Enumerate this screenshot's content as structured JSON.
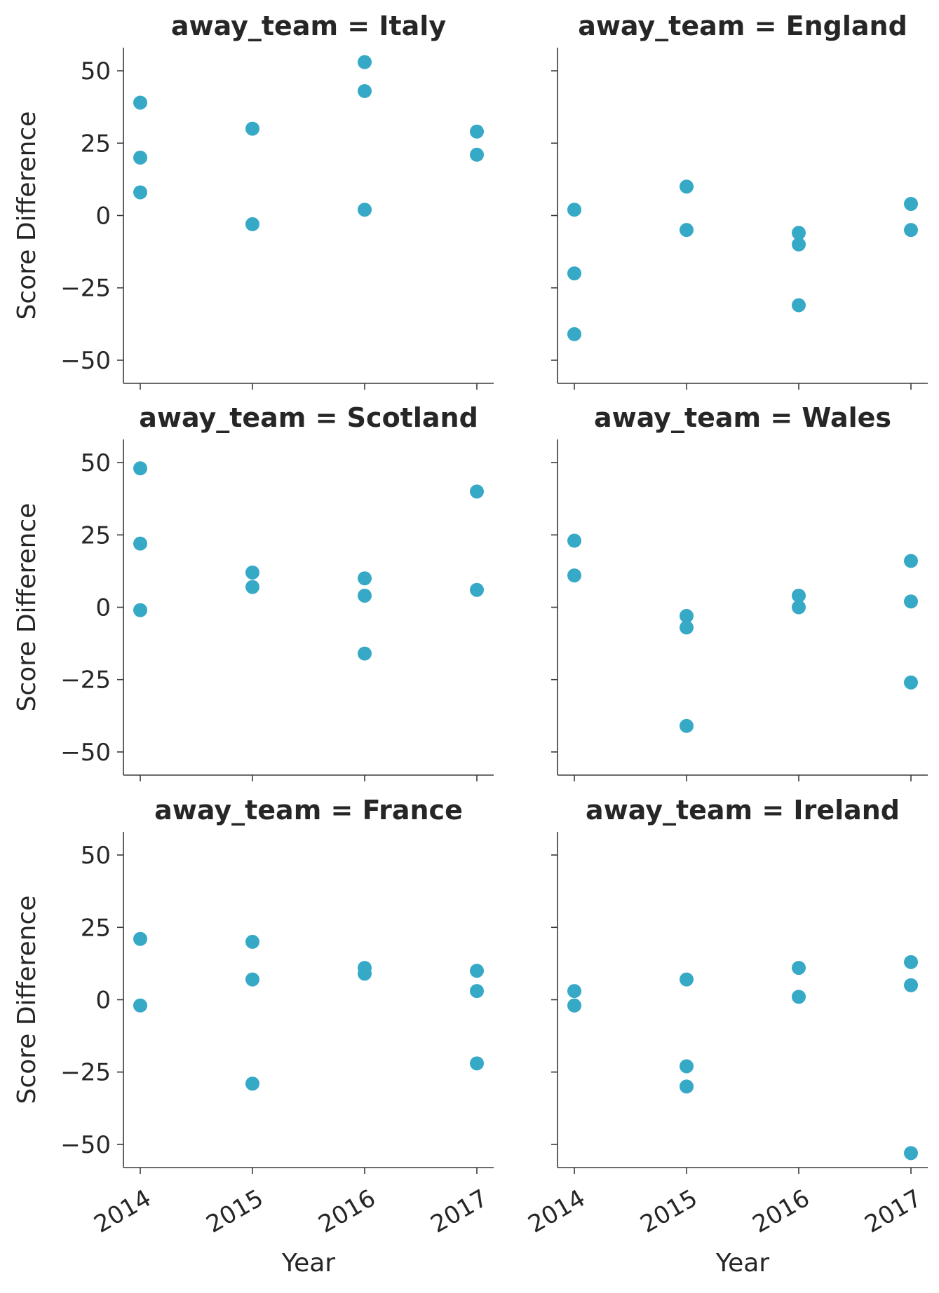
{
  "chart_data": {
    "type": "scatter",
    "facet_variable": "away_team",
    "xlabel": "Year",
    "ylabel": "Score Difference",
    "x_ticks": [
      "2014",
      "2015",
      "2016",
      "2017"
    ],
    "y_ticks": [
      50,
      25,
      0,
      -25,
      -50
    ],
    "y_tick_labels": [
      "50",
      "25",
      "0",
      "−25",
      "−50"
    ],
    "ylim": [
      -58,
      58
    ],
    "xlim": [
      2013.85,
      2017.15
    ],
    "grid": false,
    "marker_color": "#36a9c7",
    "facets": [
      {
        "title": "away_team = Italy",
        "points": [
          {
            "x": 2014,
            "y": 39
          },
          {
            "x": 2014,
            "y": 20
          },
          {
            "x": 2014,
            "y": 8
          },
          {
            "x": 2015,
            "y": 30
          },
          {
            "x": 2015,
            "y": -3
          },
          {
            "x": 2016,
            "y": 53
          },
          {
            "x": 2016,
            "y": 43
          },
          {
            "x": 2016,
            "y": 2
          },
          {
            "x": 2017,
            "y": 29
          },
          {
            "x": 2017,
            "y": 21
          }
        ]
      },
      {
        "title": "away_team = England",
        "points": [
          {
            "x": 2014,
            "y": 2
          },
          {
            "x": 2014,
            "y": -20
          },
          {
            "x": 2014,
            "y": -41
          },
          {
            "x": 2015,
            "y": 10
          },
          {
            "x": 2015,
            "y": -5
          },
          {
            "x": 2016,
            "y": -6
          },
          {
            "x": 2016,
            "y": -10
          },
          {
            "x": 2016,
            "y": -31
          },
          {
            "x": 2017,
            "y": 4
          },
          {
            "x": 2017,
            "y": -5
          }
        ]
      },
      {
        "title": "away_team = Scotland",
        "points": [
          {
            "x": 2014,
            "y": 48
          },
          {
            "x": 2014,
            "y": 22
          },
          {
            "x": 2014,
            "y": -1
          },
          {
            "x": 2015,
            "y": 12
          },
          {
            "x": 2015,
            "y": 7
          },
          {
            "x": 2016,
            "y": 10
          },
          {
            "x": 2016,
            "y": 4
          },
          {
            "x": 2016,
            "y": -16
          },
          {
            "x": 2017,
            "y": 40
          },
          {
            "x": 2017,
            "y": 6
          }
        ]
      },
      {
        "title": "away_team = Wales",
        "points": [
          {
            "x": 2014,
            "y": 23
          },
          {
            "x": 2014,
            "y": 11
          },
          {
            "x": 2015,
            "y": -3
          },
          {
            "x": 2015,
            "y": -7
          },
          {
            "x": 2015,
            "y": -41
          },
          {
            "x": 2016,
            "y": 4
          },
          {
            "x": 2016,
            "y": 0
          },
          {
            "x": 2017,
            "y": 16
          },
          {
            "x": 2017,
            "y": 2
          },
          {
            "x": 2017,
            "y": -26
          }
        ]
      },
      {
        "title": "away_team = France",
        "points": [
          {
            "x": 2014,
            "y": 21
          },
          {
            "x": 2014,
            "y": -2
          },
          {
            "x": 2015,
            "y": 20
          },
          {
            "x": 2015,
            "y": 7
          },
          {
            "x": 2015,
            "y": -29
          },
          {
            "x": 2016,
            "y": 11
          },
          {
            "x": 2016,
            "y": 9
          },
          {
            "x": 2017,
            "y": 10
          },
          {
            "x": 2017,
            "y": 3
          },
          {
            "x": 2017,
            "y": -22
          }
        ]
      },
      {
        "title": "away_team = Ireland",
        "points": [
          {
            "x": 2014,
            "y": 3
          },
          {
            "x": 2014,
            "y": -2
          },
          {
            "x": 2015,
            "y": 7
          },
          {
            "x": 2015,
            "y": -23
          },
          {
            "x": 2015,
            "y": -30
          },
          {
            "x": 2016,
            "y": 11
          },
          {
            "x": 2016,
            "y": 1
          },
          {
            "x": 2017,
            "y": 13
          },
          {
            "x": 2017,
            "y": 5
          },
          {
            "x": 2017,
            "y": -53
          }
        ]
      }
    ]
  }
}
